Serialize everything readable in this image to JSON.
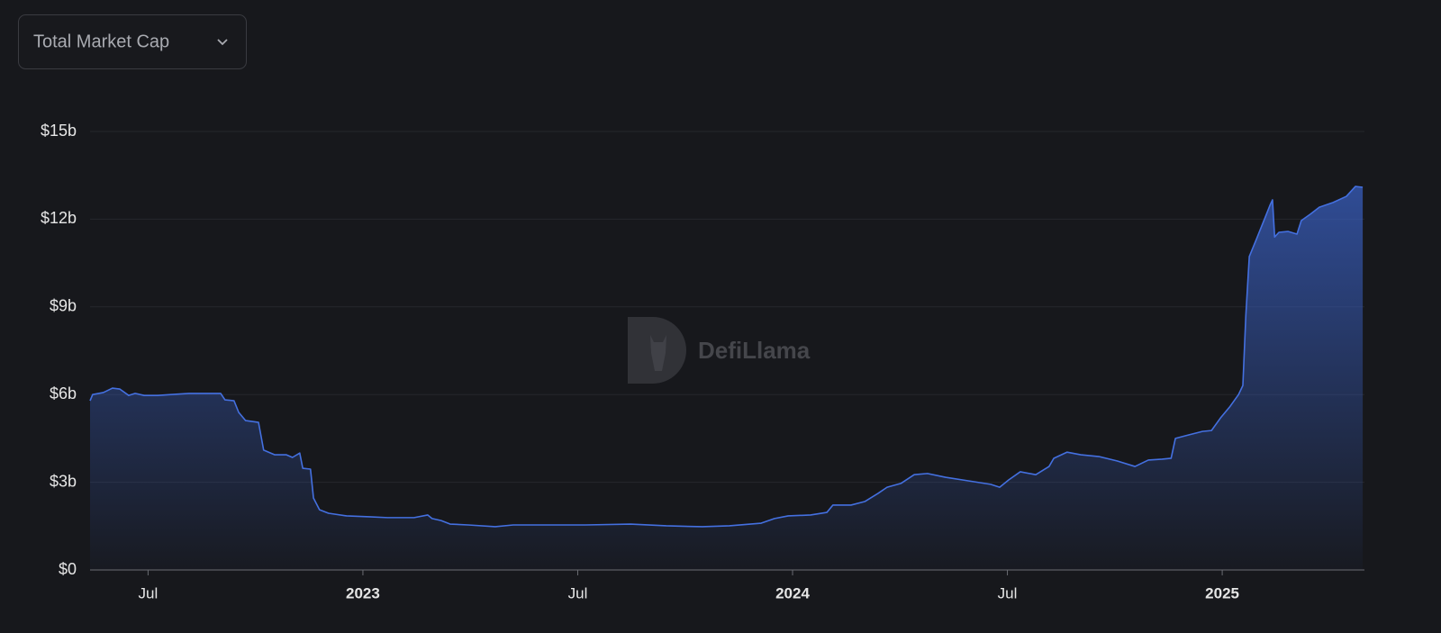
{
  "selector": "Total Market Cap",
  "watermark": "DefiLlama",
  "chart_data": {
    "type": "area",
    "color": "#4470e0",
    "grid": true,
    "xlim": [
      2022.365,
      2025.331
    ],
    "xticks": [
      {
        "value": 2022.5,
        "label": "Jul"
      },
      {
        "value": 2023,
        "label": "2023"
      },
      {
        "value": 2023.5,
        "label": "Jul"
      },
      {
        "value": 2024,
        "label": "2024"
      },
      {
        "value": 2024.5,
        "label": "Jul"
      },
      {
        "value": 2025,
        "label": "2025"
      }
    ],
    "ylim": [
      0,
      15
    ],
    "yticks": [
      {
        "value": 0,
        "label": "$0"
      },
      {
        "value": 3,
        "label": "$3b"
      },
      {
        "value": 6,
        "label": "$6b"
      },
      {
        "value": 9,
        "label": "$9b"
      },
      {
        "value": 12,
        "label": "$12b"
      },
      {
        "value": 15,
        "label": "$15b"
      }
    ],
    "x": [
      2022.365,
      2022.371,
      2022.396,
      2022.417,
      2022.434,
      2022.455,
      2022.47,
      2022.491,
      2022.522,
      2022.553,
      2022.595,
      2022.648,
      2022.669,
      2022.679,
      2022.7,
      2022.711,
      2022.727,
      2022.757,
      2022.769,
      2022.795,
      2022.822,
      2022.836,
      2022.853,
      2022.86,
      2022.878,
      2022.885,
      2022.899,
      2022.92,
      2022.962,
      2023.015,
      2023.057,
      2023.119,
      2023.151,
      2023.161,
      2023.182,
      2023.203,
      2023.245,
      2023.308,
      2023.35,
      2023.413,
      2023.518,
      2023.623,
      2023.706,
      2023.79,
      2023.853,
      2023.927,
      2023.958,
      2023.99,
      2024.042,
      2024.08,
      2024.094,
      2024.136,
      2024.168,
      2024.199,
      2024.22,
      2024.252,
      2024.283,
      2024.314,
      2024.356,
      2024.409,
      2024.461,
      2024.482,
      2024.503,
      2024.53,
      2024.566,
      2024.597,
      2024.608,
      2024.639,
      2024.671,
      2024.713,
      2024.755,
      2024.797,
      2024.828,
      2024.86,
      2024.881,
      2024.891,
      2024.922,
      2024.954,
      2024.975,
      2024.996,
      2025.017,
      2025.038,
      2025.048,
      2025.055,
      2025.063,
      2025.08,
      2025.101,
      2025.111,
      2025.117,
      2025.122,
      2025.132,
      2025.153,
      2025.174,
      2025.184,
      2025.205,
      2025.226,
      2025.258,
      2025.289,
      2025.31,
      2025.327
    ],
    "values": [
      5.79,
      6.0,
      6.07,
      6.22,
      6.19,
      5.97,
      6.04,
      5.97,
      5.97,
      6.0,
      6.04,
      6.04,
      6.04,
      5.82,
      5.79,
      5.39,
      5.11,
      5.05,
      4.1,
      3.94,
      3.94,
      3.85,
      4.0,
      3.48,
      3.45,
      2.46,
      2.06,
      1.94,
      1.85,
      1.82,
      1.79,
      1.79,
      1.88,
      1.76,
      1.69,
      1.57,
      1.54,
      1.48,
      1.54,
      1.54,
      1.54,
      1.57,
      1.51,
      1.48,
      1.51,
      1.6,
      1.76,
      1.85,
      1.88,
      1.97,
      2.22,
      2.22,
      2.34,
      2.62,
      2.83,
      2.96,
      3.26,
      3.3,
      3.17,
      3.05,
      2.93,
      2.83,
      3.08,
      3.36,
      3.26,
      3.54,
      3.82,
      4.03,
      3.94,
      3.88,
      3.73,
      3.54,
      3.76,
      3.79,
      3.82,
      4.5,
      4.62,
      4.74,
      4.77,
      5.2,
      5.57,
      6.0,
      6.31,
      8.72,
      10.72,
      11.33,
      12.1,
      12.47,
      12.66,
      11.39,
      11.55,
      11.58,
      11.49,
      11.95,
      12.17,
      12.41,
      12.57,
      12.78,
      13.12,
      13.09
    ]
  }
}
